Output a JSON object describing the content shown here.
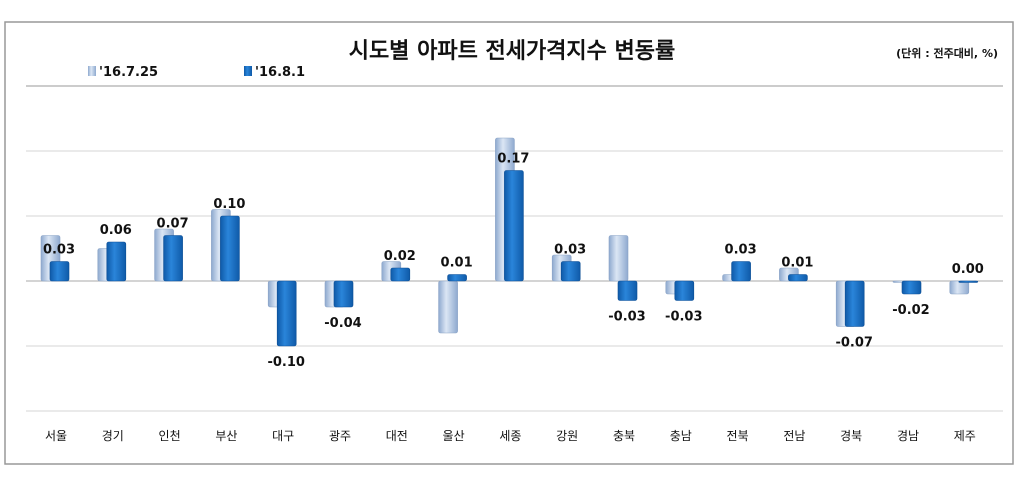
{
  "chart_data": {
    "type": "bar",
    "title": "시도별 아파트 전세가격지수 변동률",
    "unit_note": "(단위 : 전주대비, %)",
    "categories": [
      "서울",
      "경기",
      "인천",
      "부산",
      "대구",
      "광주",
      "대전",
      "울산",
      "세종",
      "강원",
      "충북",
      "충남",
      "전북",
      "전남",
      "경북",
      "경남",
      "제주"
    ],
    "series": [
      {
        "name": "'16.7.25",
        "color": "#a9c0e0",
        "values": [
          0.07,
          0.05,
          0.08,
          0.11,
          -0.04,
          -0.04,
          0.03,
          -0.08,
          0.22,
          0.04,
          0.07,
          -0.02,
          0.01,
          0.02,
          -0.07,
          0.0,
          -0.02
        ]
      },
      {
        "name": "'16.8.1",
        "color": "#1f6fc4",
        "values": [
          0.03,
          0.06,
          0.07,
          0.1,
          -0.1,
          -0.04,
          0.02,
          0.01,
          0.17,
          0.03,
          -0.03,
          -0.03,
          0.03,
          0.01,
          -0.07,
          -0.02,
          0.0
        ]
      }
    ],
    "data_labels": [
      "0.03",
      "0.06",
      "0.07",
      "0.10",
      "-0.10",
      "-0.04",
      "0.02",
      "0.01",
      "0.17",
      "0.03",
      "-0.03",
      "-0.03",
      "0.03",
      "0.01",
      "-0.07",
      "-0.02",
      "0.00"
    ],
    "ylim": [
      -0.2,
      0.3
    ],
    "grid": true,
    "y_tick_labels_shown": false,
    "legend": "top-left"
  }
}
